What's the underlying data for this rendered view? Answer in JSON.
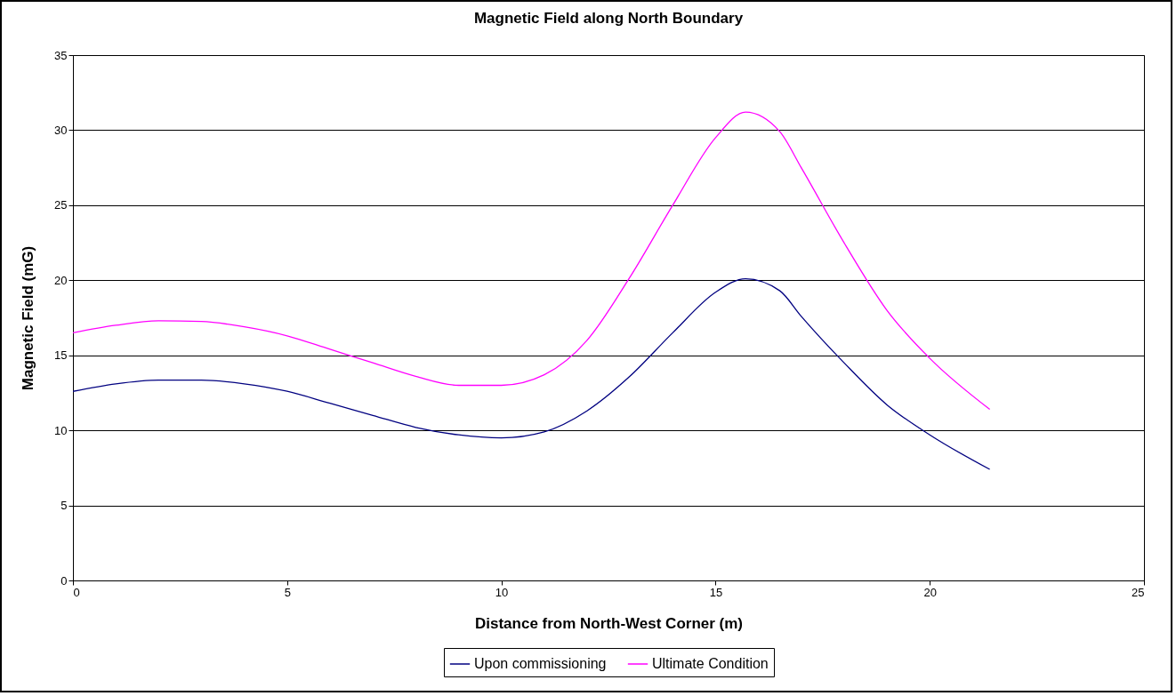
{
  "chart_data": {
    "type": "line",
    "title": "Magnetic Field along North Boundary",
    "xlabel": "Distance from North-West Corner (m)",
    "ylabel": "Magnetic Field (mG)",
    "x": [
      0,
      1,
      2,
      3,
      4,
      5,
      6,
      7,
      8,
      9,
      10,
      11,
      12,
      13,
      14,
      15,
      15.7,
      16.5,
      17,
      18,
      19,
      20,
      21.4
    ],
    "series": [
      {
        "name": "Upon commissioning",
        "color": "#000080",
        "values": [
          12.6,
          13.1,
          13.35,
          13.35,
          13.1,
          12.6,
          11.8,
          11.0,
          10.2,
          9.7,
          9.5,
          9.9,
          11.3,
          13.6,
          16.5,
          19.2,
          20.1,
          19.3,
          17.6,
          14.5,
          11.7,
          9.7,
          7.4
        ]
      },
      {
        "name": "Ultimate Condition",
        "color": "#ff00ff",
        "values": [
          16.5,
          17.0,
          17.3,
          17.25,
          16.9,
          16.3,
          15.4,
          14.5,
          13.6,
          13.0,
          13.0,
          13.7,
          16.0,
          20.2,
          25.0,
          29.5,
          31.2,
          29.9,
          27.5,
          22.5,
          18.0,
          14.8,
          11.4
        ]
      }
    ],
    "xlim": [
      0,
      25
    ],
    "xticks": [
      0,
      5,
      10,
      15,
      20,
      25
    ],
    "ylim": [
      0,
      35
    ],
    "yticks": [
      0,
      5,
      10,
      15,
      20,
      25,
      30,
      35
    ],
    "grid": "y",
    "legend": "bottom",
    "marker": "none",
    "line_style": "solid"
  }
}
